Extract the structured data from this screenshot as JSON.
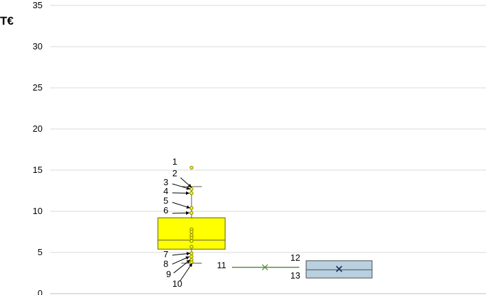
{
  "chart_data": {
    "type": "box",
    "unit_label": "T€",
    "ylim": [
      0,
      35
    ],
    "y_ticks": [
      0,
      5,
      10,
      15,
      20,
      25,
      30,
      35
    ],
    "grid": true,
    "colors": {
      "yellow_fill": "#ffff00",
      "box_stroke": "#555555",
      "point_fill": "#ffff00",
      "point_stroke": "#7f7f00",
      "green_line": "#5a8a3c",
      "blue_fill": "#b8d0e0",
      "blue_stroke": "#4a4a4a"
    },
    "boxes": [
      {
        "q1": 5.4,
        "median": 6.5,
        "q3": 9.2,
        "whisker_low": 3.7,
        "whisker_high": 13.0,
        "points": [
          15.3,
          12.7,
          12.2,
          10.4,
          9.8,
          7.8,
          7.5,
          7.1,
          6.8,
          6.4,
          5.7,
          4.9,
          4.5,
          4.1,
          3.8
        ]
      },
      {
        "value": 3.2,
        "mean": 3.2
      },
      {
        "q1": 1.9,
        "median": 2.9,
        "q3": 4.0,
        "mean": 3.0
      }
    ],
    "annotations": [
      {
        "label": "1"
      },
      {
        "label": "2"
      },
      {
        "label": "3"
      },
      {
        "label": "4"
      },
      {
        "label": "5"
      },
      {
        "label": "6"
      },
      {
        "label": "7"
      },
      {
        "label": "8"
      },
      {
        "label": "9"
      },
      {
        "label": "10"
      },
      {
        "label": "11"
      },
      {
        "label": "12"
      },
      {
        "label": "13"
      }
    ]
  }
}
